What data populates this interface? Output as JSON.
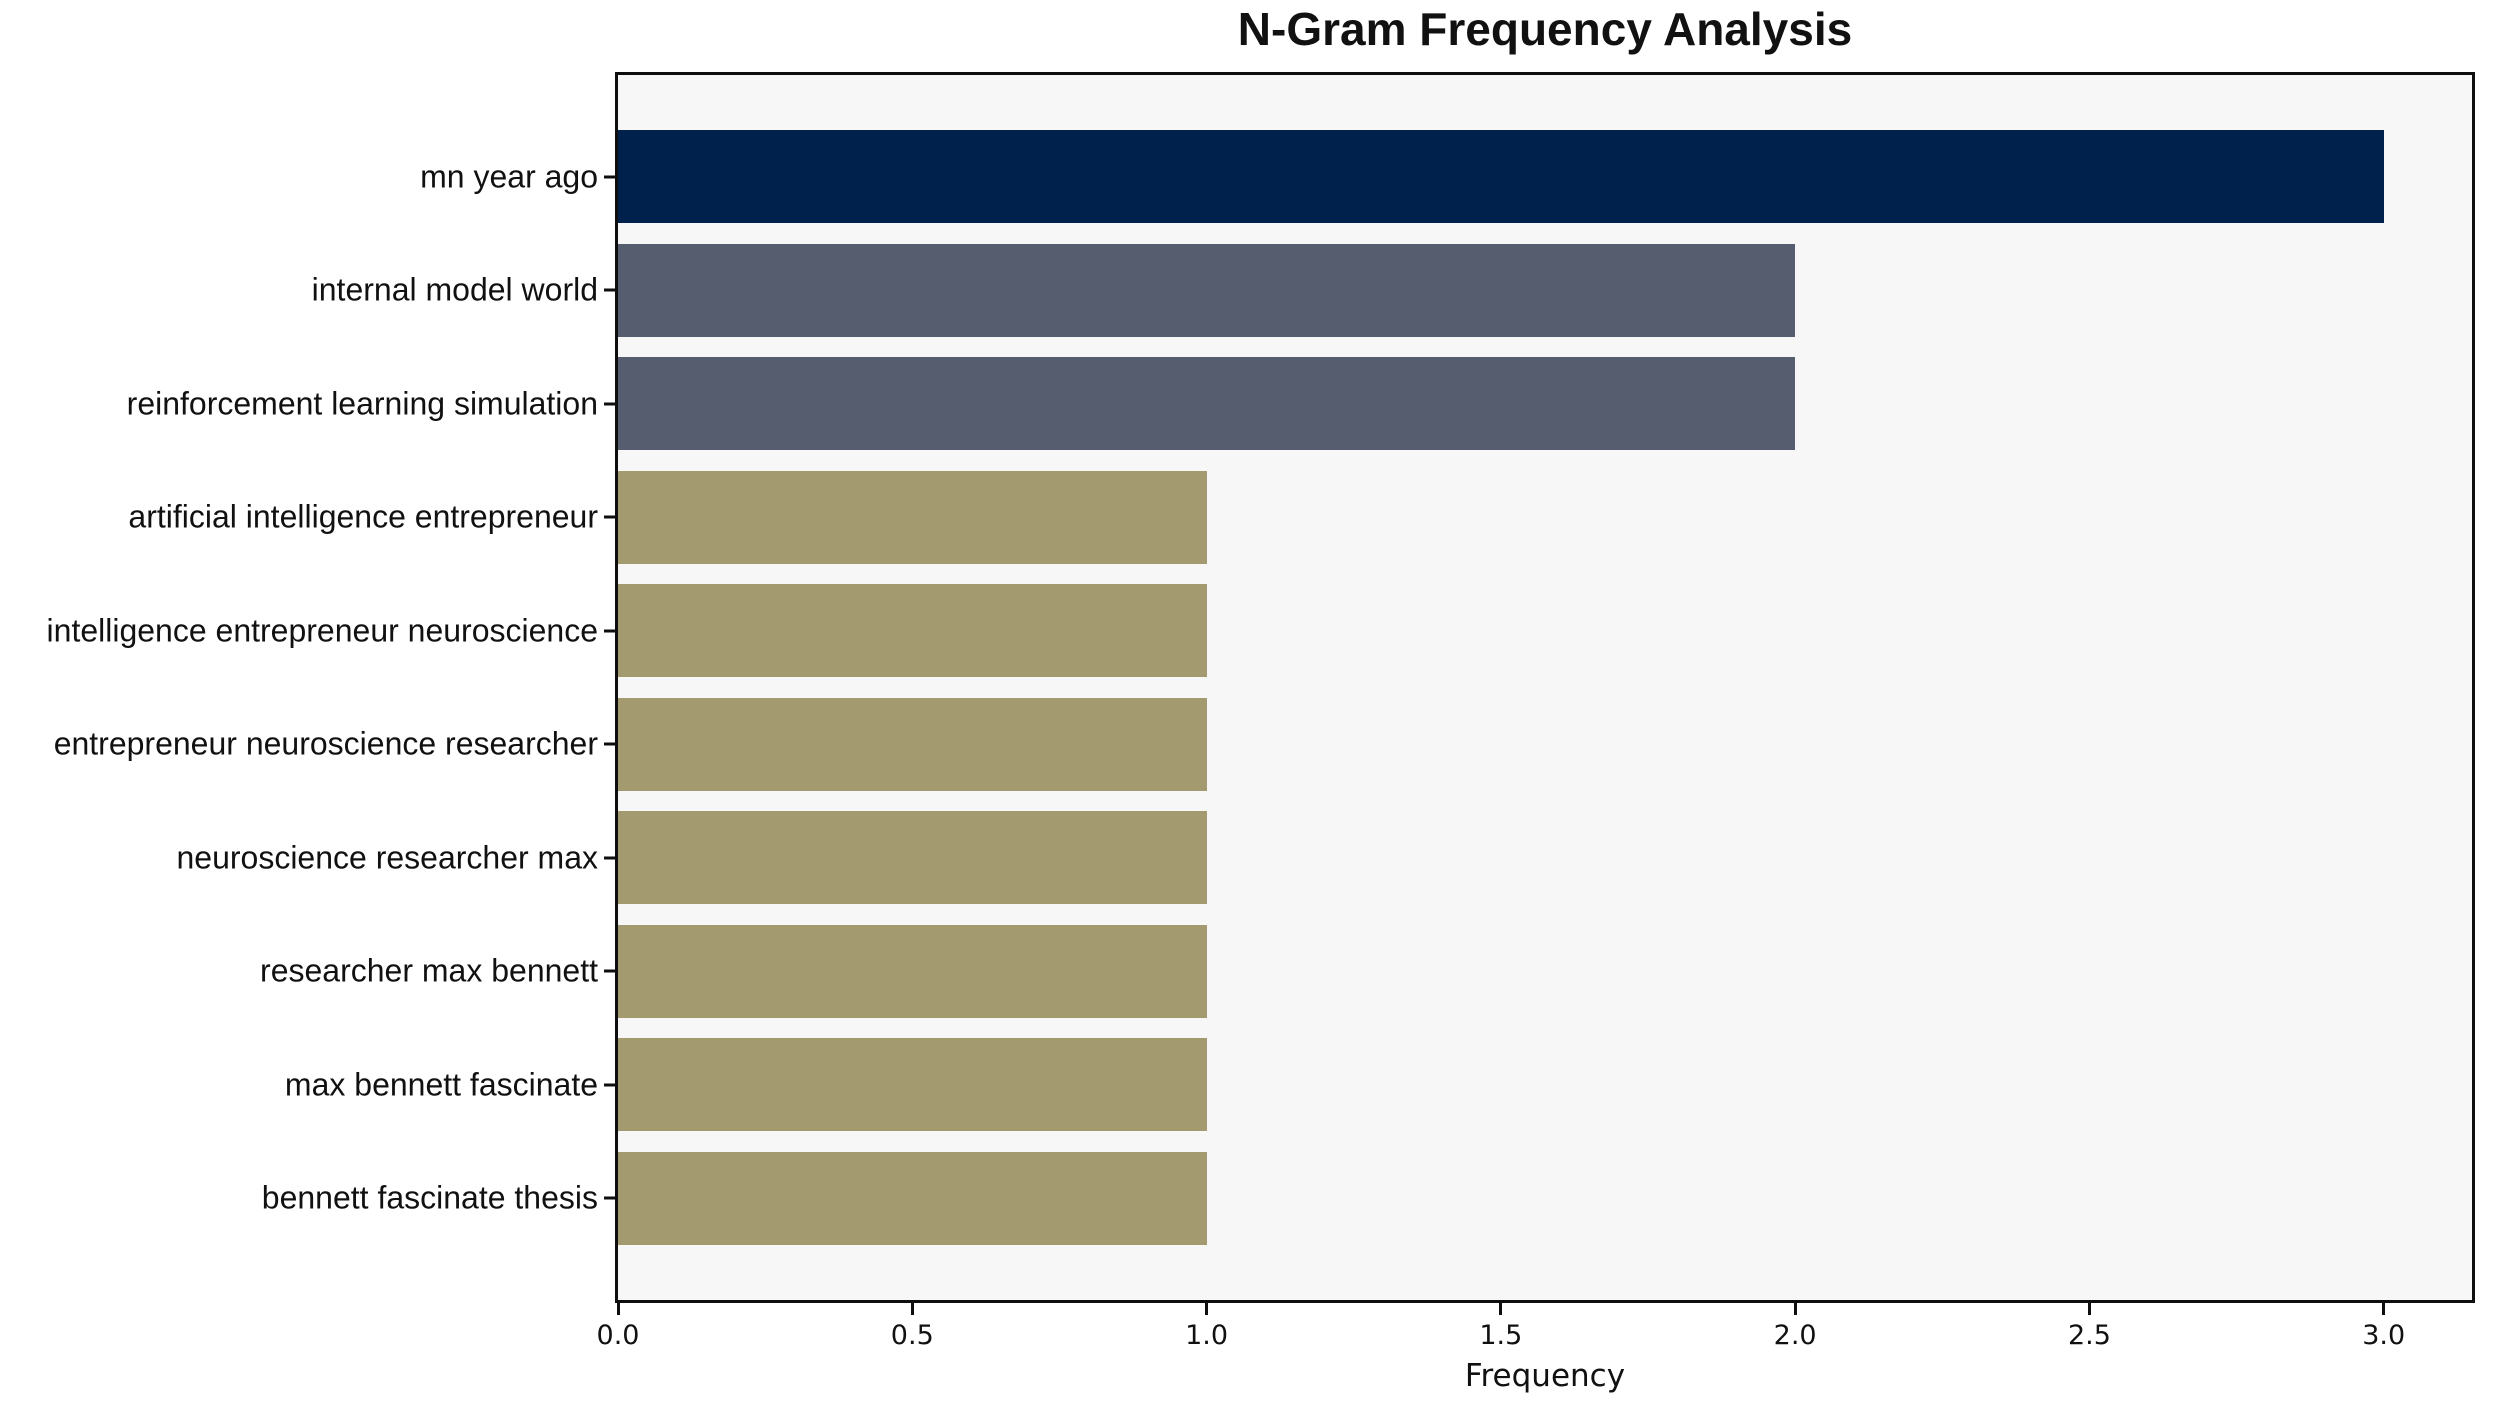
{
  "title": "N-Gram Frequency Analysis",
  "chart_data": {
    "type": "bar",
    "orientation": "horizontal",
    "title": "N-Gram Frequency Analysis",
    "xlabel": "Frequency",
    "ylabel": "",
    "categories": [
      "mn year ago",
      "internal model world",
      "reinforcement learning simulation",
      "artificial intelligence entrepreneur",
      "intelligence entrepreneur neuroscience",
      "entrepreneur neuroscience researcher",
      "neuroscience researcher max",
      "researcher max bennett",
      "max bennett fascinate",
      "bennett fascinate thesis"
    ],
    "values": [
      3,
      2,
      2,
      1,
      1,
      1,
      1,
      1,
      1,
      1
    ],
    "xlim": [
      0,
      3.15
    ],
    "x_ticks": [
      0.0,
      0.5,
      1.0,
      1.5,
      2.0,
      2.5,
      3.0
    ],
    "x_tick_labels": [
      "0.0",
      "0.5",
      "1.0",
      "1.5",
      "2.0",
      "2.5",
      "3.0"
    ],
    "grid": false,
    "legend_position": "none",
    "bar_colors": [
      "#01214d",
      "#565d6f",
      "#565d6f",
      "#a49a6f",
      "#a49a6f",
      "#a49a6f",
      "#a49a6f",
      "#a49a6f",
      "#a49a6f",
      "#a49a6f"
    ]
  },
  "colors": {
    "navy": "#01214d",
    "slate": "#565d6f",
    "khaki": "#a49a6f",
    "plot_background": "#f7f7f8",
    "figure_background": "#ffffff",
    "axis": "#0e0e0e",
    "text": "#111111"
  }
}
